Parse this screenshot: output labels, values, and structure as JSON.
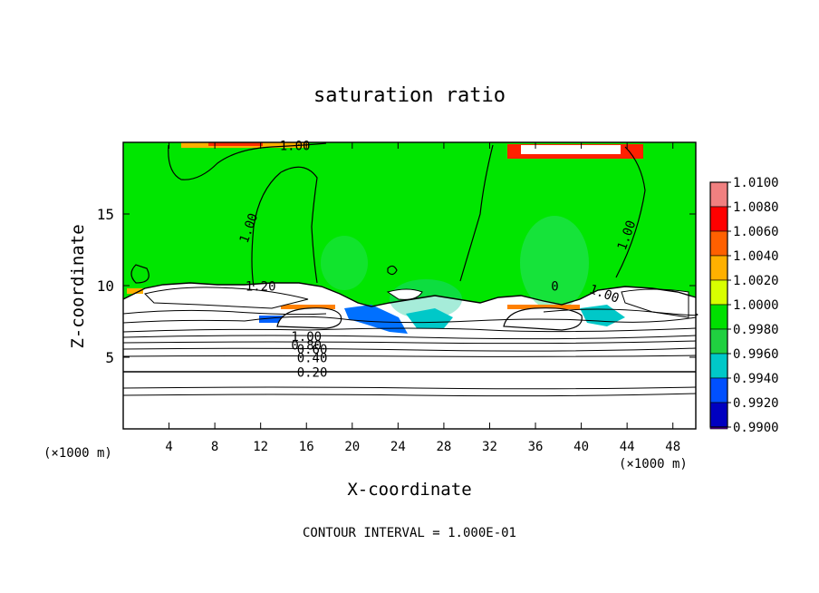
{
  "chart_data": {
    "type": "heatmap",
    "title": "saturation ratio",
    "xlabel": "X-coordinate",
    "ylabel": "Z-coordinate",
    "x_unit_left": "(×1000 m)",
    "x_unit_right": "(×1000 m)",
    "footer": "CONTOUR INTERVAL = 1.000E-01",
    "xlim": [
      0,
      50
    ],
    "ylim": [
      0,
      20
    ],
    "x_ticks": [
      4,
      8,
      12,
      16,
      20,
      24,
      28,
      32,
      36,
      40,
      44,
      48
    ],
    "y_ticks": [
      5,
      10,
      15
    ],
    "colorbar": {
      "labels": [
        "1.0100",
        "1.0080",
        "1.0060",
        "1.0040",
        "1.0020",
        "1.0000",
        "0.9980",
        "0.9960",
        "0.9940",
        "0.9920",
        "0.9900"
      ],
      "colors": [
        "#f08080",
        "#ff0000",
        "#ff6000",
        "#ffb000",
        "#d8ff00",
        "#00e000",
        "#20d040",
        "#00c8c8",
        "#0050ff",
        "#0000c0",
        "#6000a0"
      ]
    },
    "contour_labels": [
      {
        "text": "1.00",
        "x": 15.0,
        "z": 19.7,
        "rot": 0
      },
      {
        "text": "1.00",
        "x": 11.0,
        "z": 14.0,
        "rot": -70
      },
      {
        "text": "1.00",
        "x": 44.0,
        "z": 13.5,
        "rot": -70
      },
      {
        "text": "1.20",
        "x": 12.0,
        "z": 9.9,
        "rot": 0
      },
      {
        "text": "0",
        "x": 37.7,
        "z": 9.9,
        "rot": 0
      },
      {
        "text": "1.00",
        "x": 42.0,
        "z": 9.4,
        "rot": 20
      },
      {
        "text": "1.00",
        "x": 16.0,
        "z": 6.4,
        "rot": 0
      },
      {
        "text": "0.80",
        "x": 16.0,
        "z": 5.8,
        "rot": 0
      },
      {
        "text": "0.60",
        "x": 16.5,
        "z": 5.5,
        "rot": 0
      },
      {
        "text": "0.40",
        "x": 16.5,
        "z": 4.9,
        "rot": 0
      },
      {
        "text": "0.20",
        "x": 16.5,
        "z": 3.9,
        "rot": 0
      }
    ],
    "colors": {
      "field": "#00e600",
      "line": "#000000",
      "cloud": "#ffffff"
    }
  }
}
